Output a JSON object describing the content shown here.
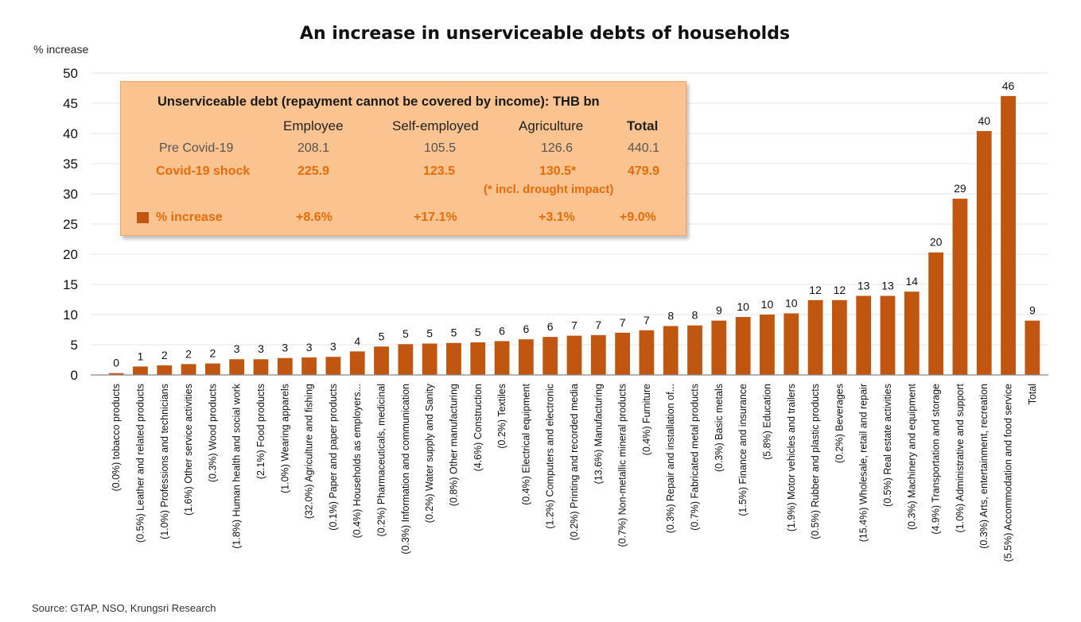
{
  "title": "An increase in unserviceable debts of households",
  "y_unit": "% increase",
  "source": "Source: GTAP, NSO, Krungsri Research",
  "colors": {
    "bar": "#c0560f",
    "inset_bg": "#fbc38f",
    "highlight": "#e46c0a"
  },
  "inset": {
    "title": "Unserviceable debt (repayment cannot be covered by income): THB bn",
    "columns": [
      "Employee",
      "Self-employed",
      "Agriculture",
      "Total"
    ],
    "rows": [
      {
        "label": "Pre Covid-19",
        "values": [
          "208.1",
          "105.5",
          "126.6",
          "440.1"
        ]
      },
      {
        "label": "Covid-19 shock",
        "values": [
          "225.9",
          "123.5",
          "130.5*",
          "479.9"
        ]
      },
      {
        "label": "% increase",
        "values": [
          "+8.6%",
          "+17.1%",
          "+3.1%",
          "+9.0%"
        ]
      }
    ],
    "note": "(* incl. drought impact)"
  },
  "chart_data": {
    "type": "bar",
    "ylim": [
      0,
      50
    ],
    "yticks": [
      0,
      5,
      10,
      15,
      20,
      25,
      30,
      35,
      40,
      45,
      50
    ],
    "ylabel": "% increase",
    "grid": true,
    "categories": [
      "(0.0%) tobacco products",
      "(0.5%) Leather and related products",
      "(1.0%) Professions and technicians",
      "(1.6%) Other service activities",
      "(0.3%) Wood products",
      "(1.8%) Human health and social work",
      "(2.1%) Food products",
      "(1.0%) Wearing apparels",
      "(32.0%) Agriculture and fishing",
      "(0.1%) Paper and paper products",
      "(0.4%) Households as employers...",
      "(0.2%) Pharmaceuticals, medicinal",
      "(0.3%) Information and communication",
      "(0.2%) Water supply and Sanity",
      "(0.8%) Other manufacturing",
      "(4.6%) Construction",
      "(0.2%) Textiles",
      "(0.4%) Electrical equipment",
      "(1.2%) Computers and electronic",
      "(0.2%) Printing and recorded media",
      "(13.6%) Manufacturing",
      "(0.7%) Non-metallic mineral products",
      "(0.4%) Furniture",
      "(0.3%) Repair and installation of...",
      "(0.7%) Fabricated metal products",
      "(0.3%) Basic metals",
      "(1.5%) Finance and insurance",
      "(5.8%) Education",
      "(1.9%) Motor vehicles and trailers",
      "(0.5%) Rubber and plastic products",
      "(0.2%) Beverages",
      "(15.4%) Wholesale, retail and repair",
      "(0.5%) Real estate activities",
      "(0.3%) Machinery and equipment",
      "(4.9%) Transportation and storage",
      "(1.0%) Administrative and support",
      "(0.3%) Arts, entertainment, recreation",
      "(5.5%) Accommodation and food service",
      "Total"
    ],
    "values": [
      0.3,
      1.4,
      1.6,
      1.8,
      1.9,
      2.6,
      2.6,
      2.8,
      2.9,
      3.0,
      3.9,
      4.7,
      5.1,
      5.2,
      5.3,
      5.4,
      5.6,
      5.9,
      6.3,
      6.5,
      6.6,
      7.0,
      7.4,
      8.1,
      8.2,
      9.0,
      9.6,
      10.0,
      10.2,
      12.4,
      12.4,
      13.1,
      13.1,
      13.8,
      20.3,
      29.2,
      40.4,
      46.2,
      9.0
    ],
    "data_labels": [
      "0",
      "1",
      "2",
      "2",
      "2",
      "3",
      "3",
      "3",
      "3",
      "3",
      "4",
      "5",
      "5",
      "5",
      "5",
      "5",
      "6",
      "6",
      "6",
      "7",
      "7",
      "7",
      "7",
      "8",
      "8",
      "9",
      "10",
      "10",
      "10",
      "12",
      "12",
      "13",
      "13",
      "14",
      "20",
      "29",
      "40",
      "46",
      "9"
    ]
  }
}
